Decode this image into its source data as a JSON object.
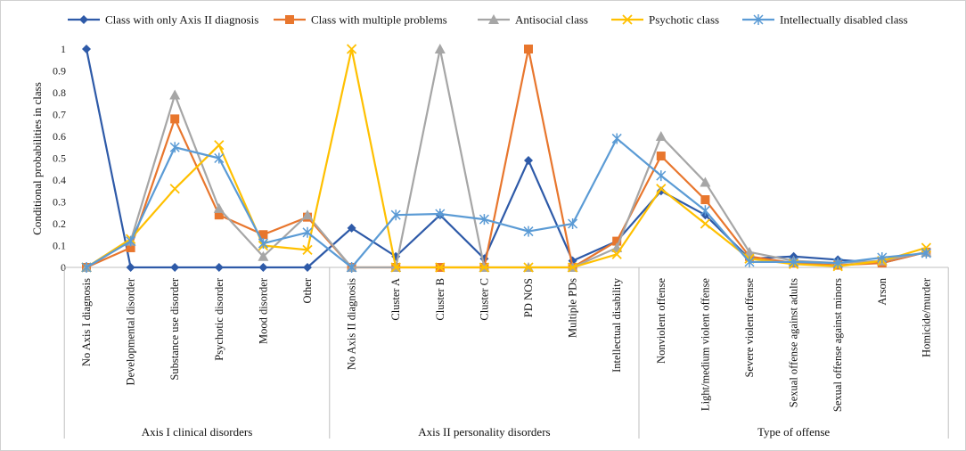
{
  "chart_data": {
    "type": "line",
    "title": "",
    "ylabel": "Conditional probabilities in class",
    "xlabel": "",
    "ylim": [
      0,
      1
    ],
    "yticks": [
      "0",
      "0.1",
      "0.2",
      "0.3",
      "0.4",
      "0.5",
      "0.6",
      "0.7",
      "0.8",
      "0.9",
      "1"
    ],
    "grid": false,
    "legend_position": "top",
    "categories": [
      "No Axis I diagnosis",
      "Developmental disorder",
      "Substance use disorder",
      "Psychotic disorder",
      "Mood disorder",
      "Other",
      "No Axis II diagnosis",
      "Cluster A",
      "Cluster B",
      "Cluster C",
      "PD NOS",
      "Multiple PDs",
      "Intellectual disability",
      "Nonviolent offense",
      "Light/medium violent offense",
      "Severe violent offense",
      "Sexual offense against adults",
      "Sexual offense against minors",
      "Arson",
      "Homicide/murder"
    ],
    "groups": [
      {
        "label": "Axis I clinical disorders",
        "count": 6
      },
      {
        "label": "Axis II personality disorders",
        "count": 7
      },
      {
        "label": "Type of offense",
        "count": 7
      }
    ],
    "series": [
      {
        "name": "Class with only Axis II diagnosis",
        "color": "#2e5aa8",
        "marker": "diamond",
        "values": [
          1.0,
          0.0,
          0.0,
          0.0,
          0.0,
          0.0,
          0.18,
          0.05,
          0.24,
          0.04,
          0.49,
          0.03,
          0.12,
          0.35,
          0.24,
          0.04,
          0.05,
          0.035,
          0.02,
          0.07
        ]
      },
      {
        "name": "Class with multiple problems",
        "color": "#e8762d",
        "marker": "square",
        "values": [
          0.0,
          0.09,
          0.68,
          0.24,
          0.15,
          0.23,
          0.0,
          0.0,
          0.0,
          0.0,
          1.0,
          0.0,
          0.12,
          0.51,
          0.31,
          0.05,
          0.02,
          0.01,
          0.02,
          0.07
        ]
      },
      {
        "name": "Antisocial class",
        "color": "#a6a6a6",
        "marker": "triangle",
        "values": [
          0.0,
          0.12,
          0.79,
          0.27,
          0.05,
          0.24,
          0.0,
          0.0,
          1.0,
          0.0,
          0.0,
          0.0,
          0.09,
          0.6,
          0.39,
          0.07,
          0.03,
          0.02,
          0.03,
          0.07
        ]
      },
      {
        "name": "Psychotic class",
        "color": "#ffc000",
        "marker": "x",
        "values": [
          0.0,
          0.13,
          0.36,
          0.56,
          0.1,
          0.08,
          1.0,
          0.0,
          0.0,
          0.0,
          0.0,
          0.0,
          0.06,
          0.36,
          0.2,
          0.04,
          0.015,
          0.005,
          0.03,
          0.09
        ]
      },
      {
        "name": "Intellectually disabled class",
        "color": "#5b9bd5",
        "marker": "star",
        "values": [
          0.0,
          0.12,
          0.55,
          0.5,
          0.11,
          0.16,
          0.0,
          0.24,
          0.245,
          0.22,
          0.165,
          0.2,
          0.59,
          0.42,
          0.26,
          0.025,
          0.025,
          0.02,
          0.045,
          0.065
        ]
      }
    ]
  }
}
